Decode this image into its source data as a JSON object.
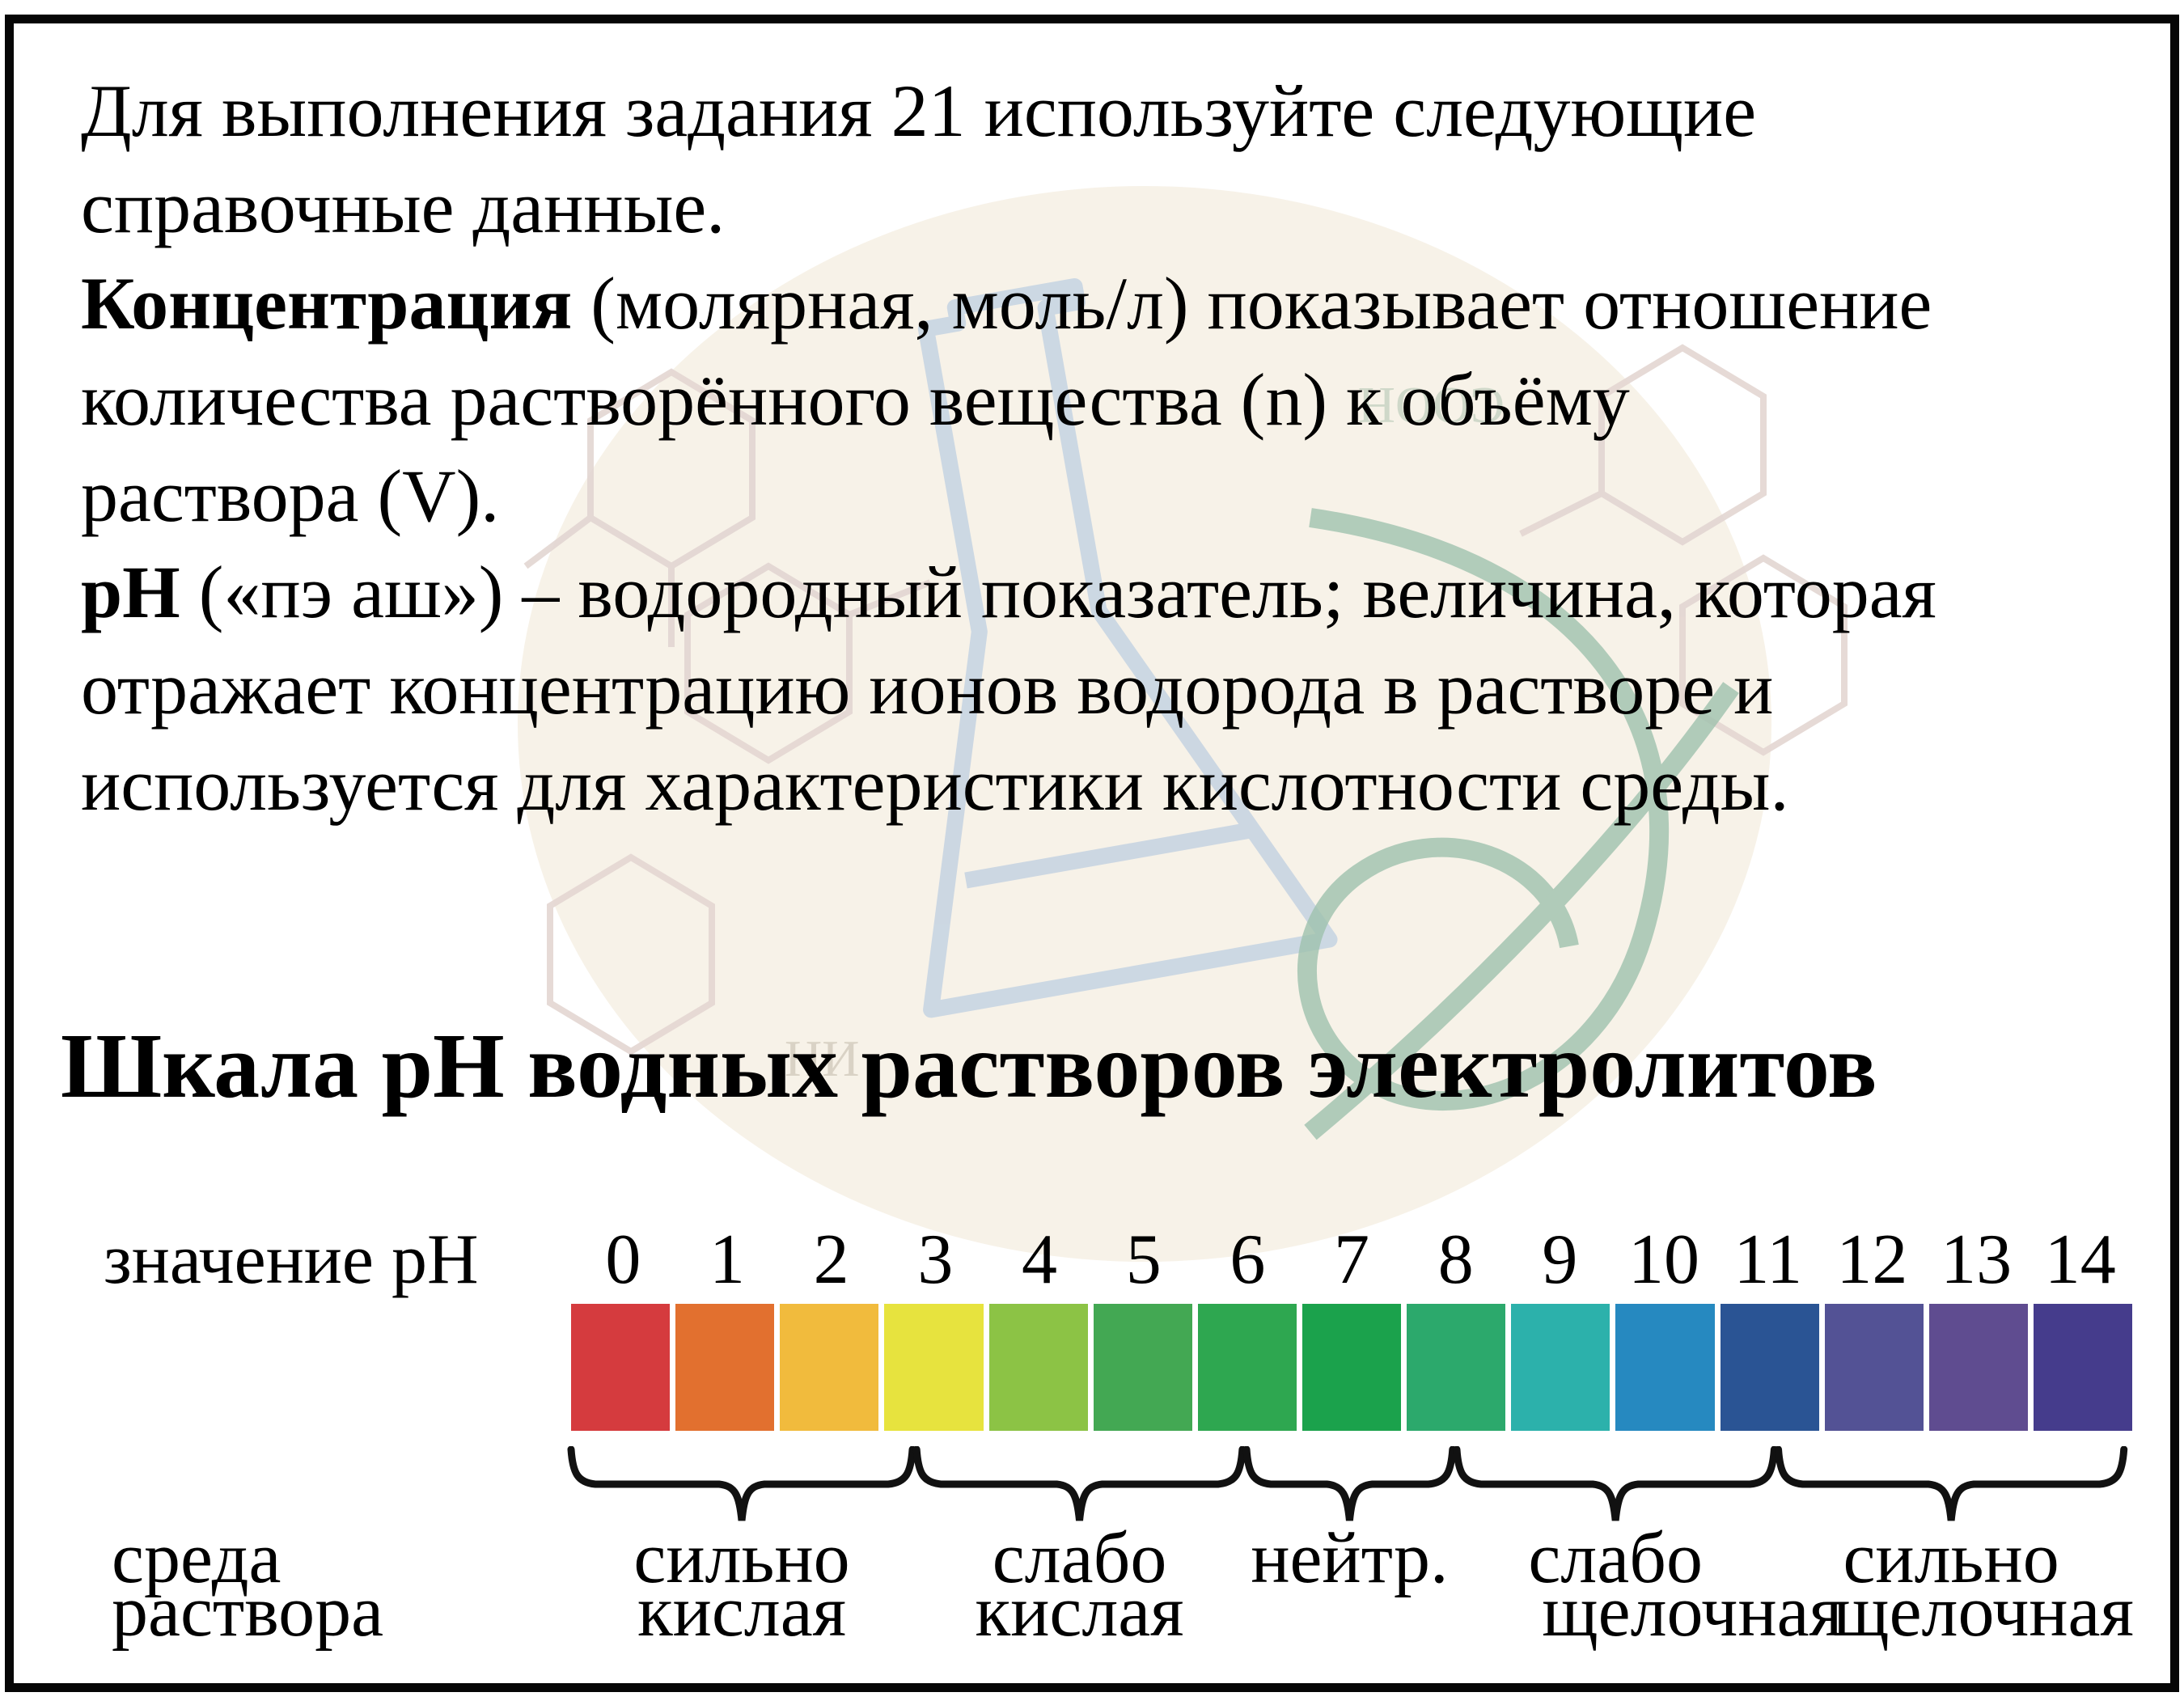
{
  "page": {
    "background": "#ffffff",
    "border_color": "#060606"
  },
  "intro": {
    "lines": [
      {
        "bold": "",
        "text": "Для выполнения задания 21 используйте следующие"
      },
      {
        "bold": "",
        "text": "справочные данные."
      },
      {
        "bold": "Концентрация",
        "text": " (молярная, моль/л) показывает отношение"
      },
      {
        "bold": "",
        "text": "количества растворённого вещества (n) к объёму"
      },
      {
        "bold": "",
        "text": "раствора (V)."
      },
      {
        "bold": "pH",
        "text": " («пэ аш») – водородный показатель; величина, которая"
      },
      {
        "bold": "",
        "text": "отражает концентрацию ионов водорода в растворе и"
      },
      {
        "bold": "",
        "text": "используется для характеристики кислотности среды."
      }
    ]
  },
  "scale": {
    "title": "Шкала pH водных растворов электролитов",
    "axis_label": "значение pH",
    "row_label_line1": "среда",
    "row_label_line2": "раствора",
    "ph_values": [
      "0",
      "1",
      "2",
      "3",
      "4",
      "5",
      "6",
      "7",
      "8",
      "9",
      "10",
      "11",
      "12",
      "13",
      "14"
    ],
    "cell_colors": [
      "#d53b3e",
      "#e2702f",
      "#f1bb3d",
      "#e7e33e",
      "#8cc345",
      "#43a853",
      "#2ea750",
      "#1ba24c",
      "#2ca96c",
      "#2cb1ab",
      "#2689c0",
      "#2a5494",
      "#535295",
      "#5f4c90",
      "#453c8c"
    ],
    "zones": [
      {
        "line1": "сильно",
        "line2": "кислая",
        "from": 0,
        "to": 3.28,
        "dx2": 0
      },
      {
        "line1": "слабо",
        "line2": "кислая",
        "from": 3.32,
        "to": 6.45,
        "dx2": 0
      },
      {
        "line1": "нейтр.",
        "line2": "",
        "from": 6.49,
        "to": 8.47,
        "dx2": 0
      },
      {
        "line1": "слабо",
        "line2": "щелочная",
        "from": 8.51,
        "to": 11.56,
        "dx2": 95
      },
      {
        "line1": "сильно",
        "line2": "щелочная",
        "from": 11.6,
        "to": 14.92,
        "dx2": 40
      }
    ],
    "brace_color": "#111111"
  },
  "watermark": {
    "circle_fill": "#f7f2e8",
    "flask_color": "#b6c9e0",
    "leaf_color": "#9fc2ae",
    "hex_color": "#e3d6d2",
    "label1": "НИ",
    "label2": "СООН"
  }
}
